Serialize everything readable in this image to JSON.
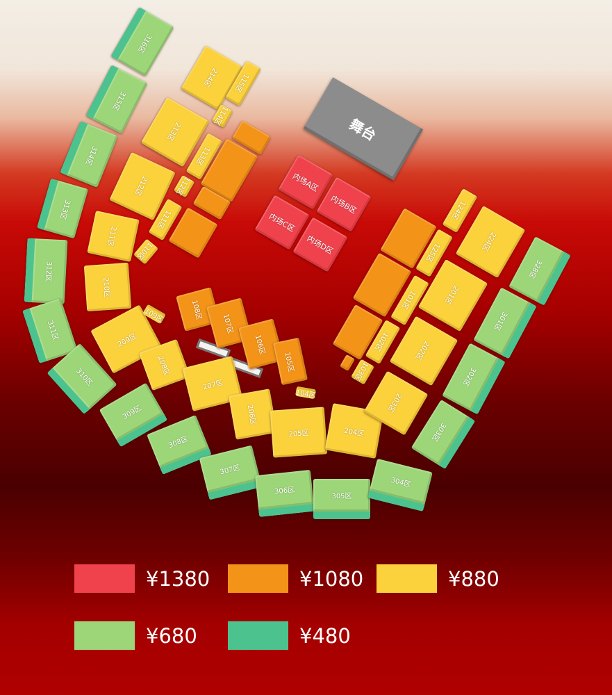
{
  "stage": {
    "label": "舞台"
  },
  "colors": {
    "1380": "#f0424c",
    "1080": "#f39318",
    "880": "#fbd13c",
    "680": "#9dd679",
    "480": "#4cc38e"
  },
  "sections": [
    {
      "label": "316区",
      "tier": "680"
    },
    {
      "label": "315区",
      "tier": "680"
    },
    {
      "label": "314区",
      "tier": "680"
    },
    {
      "label": "313区",
      "tier": "680"
    },
    {
      "label": "312区",
      "tier": "680"
    },
    {
      "label": "311区",
      "tier": "680"
    },
    {
      "label": "310区",
      "tier": "680"
    },
    {
      "label": "309区",
      "tier": "680"
    },
    {
      "label": "308区",
      "tier": "680"
    },
    {
      "label": "307区",
      "tier": "680"
    },
    {
      "label": "306区",
      "tier": "680"
    },
    {
      "label": "305区",
      "tier": "680"
    },
    {
      "label": "304区",
      "tier": "680"
    },
    {
      "label": "303区",
      "tier": "680"
    },
    {
      "label": "302区",
      "tier": "680"
    },
    {
      "label": "301区",
      "tier": "680"
    },
    {
      "label": "328区",
      "tier": "680"
    },
    {
      "label": "214区",
      "tier": "880"
    },
    {
      "label": "213区",
      "tier": "880"
    },
    {
      "label": "212区",
      "tier": "880"
    },
    {
      "label": "211区",
      "tier": "880"
    },
    {
      "label": "210区",
      "tier": "880"
    },
    {
      "label": "209区",
      "tier": "880"
    },
    {
      "label": "208区",
      "tier": "880"
    },
    {
      "label": "207区",
      "tier": "880"
    },
    {
      "label": "206区",
      "tier": "880"
    },
    {
      "label": "205区",
      "tier": "880"
    },
    {
      "label": "204区",
      "tier": "880"
    },
    {
      "label": "203区",
      "tier": "880"
    },
    {
      "label": "202区",
      "tier": "880"
    },
    {
      "label": "201区",
      "tier": "880"
    },
    {
      "label": "224区",
      "tier": "880"
    },
    {
      "label": "115区",
      "tier": "880"
    },
    {
      "label": "114区",
      "tier": "880"
    },
    {
      "label": "113区",
      "tier": "880"
    },
    {
      "label": "112区",
      "tier": "880"
    },
    {
      "label": "111区",
      "tier": "880"
    },
    {
      "label": "110区",
      "tier": "880"
    },
    {
      "label": "124区",
      "tier": "880"
    },
    {
      "label": "125区",
      "tier": "880"
    },
    {
      "label": "101区",
      "tier": "880"
    },
    {
      "label": "102区",
      "tier": "880"
    },
    {
      "label": "103区",
      "tier": "880"
    },
    {
      "label": "109区",
      "tier": "880"
    },
    {
      "label": "104区",
      "tier": "880"
    },
    {
      "label": "108区",
      "tier": "1080"
    },
    {
      "label": "107区",
      "tier": "1080"
    },
    {
      "label": "106区",
      "tier": "1080"
    },
    {
      "label": "105区",
      "tier": "1080"
    },
    {
      "label": "",
      "tier": "1080"
    },
    {
      "label": "",
      "tier": "1080"
    },
    {
      "label": "",
      "tier": "1080"
    },
    {
      "label": "",
      "tier": "1080"
    },
    {
      "label": "",
      "tier": "1080"
    },
    {
      "label": "",
      "tier": "1080"
    },
    {
      "label": "",
      "tier": "1080"
    },
    {
      "label": "",
      "tier": "1080"
    },
    {
      "label": "内场A区",
      "tier": "1380"
    },
    {
      "label": "内场B区",
      "tier": "1380"
    },
    {
      "label": "内场C区",
      "tier": "1380"
    },
    {
      "label": "内场D区",
      "tier": "1380"
    }
  ],
  "legend": [
    {
      "price": "¥1380",
      "tier": "1380"
    },
    {
      "price": "¥1080",
      "tier": "1080"
    },
    {
      "price": "¥880",
      "tier": "880"
    },
    {
      "price": "¥680",
      "tier": "680"
    },
    {
      "price": "¥480",
      "tier": "480"
    }
  ]
}
